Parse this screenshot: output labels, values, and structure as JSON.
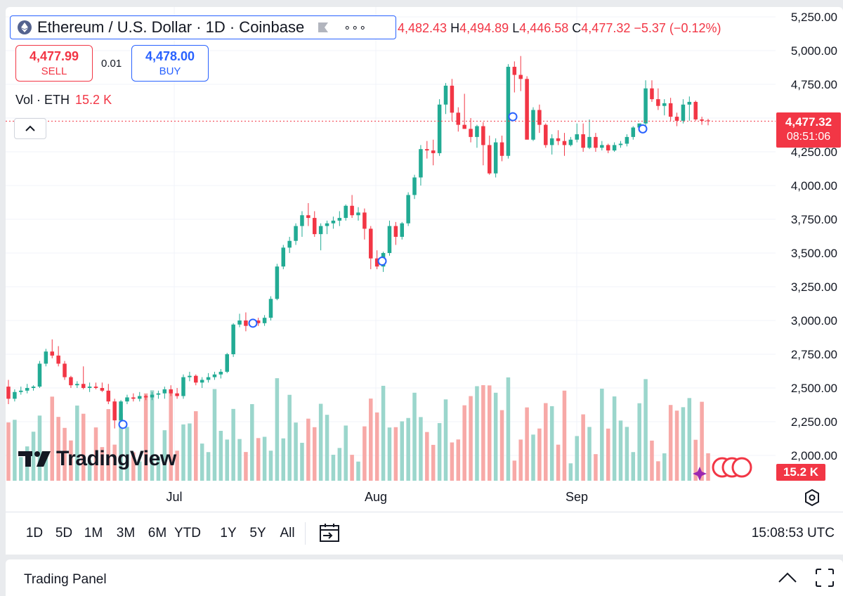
{
  "symbol": {
    "title": "Ethereum / U.S. Dollar · 1D · Coinbase",
    "icon": "ethereum-logo-icon",
    "more_icon": "more-options-icon"
  },
  "ohlc": {
    "o": "4,482.43",
    "h_label": "H",
    "h": "4,494.89",
    "l_label": "L",
    "l": "4,446.58",
    "c_label": "C",
    "c": "4,477.32",
    "change": "−5.37 (−0.12%)"
  },
  "trade": {
    "sell_price": "4,477.99",
    "sell_label": "SELL",
    "spread": "0.01",
    "buy_price": "4,478.00",
    "buy_label": "BUY"
  },
  "volume_legend": {
    "label": "Vol · ETH",
    "value": "15.2 K"
  },
  "last_price_tag": {
    "price": "4,477.32",
    "countdown": "08:51:06"
  },
  "volume_tag": "15.2 K",
  "brand": "TradingView",
  "colors": {
    "up": "#22ab94",
    "down": "#f23645",
    "up_vol": "#9bd6cc",
    "down_vol": "#f7a9a7",
    "accent": "#2962ff"
  },
  "range_buttons": [
    "1D",
    "5D",
    "1M",
    "3M",
    "6M",
    "YTD",
    "1Y",
    "5Y",
    "All"
  ],
  "clock": "15:08:53 UTC",
  "trading_panel": {
    "title": "Trading Panel"
  },
  "chart_data": {
    "type": "candlestick",
    "interval": "1D",
    "y_axis": {
      "labels": [
        "5,250.00",
        "5,000.00",
        "4,750.00",
        "4,500.00",
        "4,250.00",
        "4,000.00",
        "3,750.00",
        "3,500.00",
        "3,250.00",
        "3,000.00",
        "2,750.00",
        "2,500.00",
        "2,250.00",
        "2,000.00"
      ],
      "min": 1900,
      "max": 5300
    },
    "x_axis": {
      "labels": [
        "Jul",
        "Aug",
        "Sep"
      ]
    },
    "last_price": 4477.32,
    "candles": [
      [
        2510,
        2560,
        2380,
        2420
      ],
      [
        2420,
        2490,
        2400,
        2470
      ],
      [
        2470,
        2510,
        2450,
        2480
      ],
      [
        2480,
        2530,
        2460,
        2500
      ],
      [
        2500,
        2520,
        2480,
        2510
      ],
      [
        2510,
        2700,
        2500,
        2680
      ],
      [
        2680,
        2790,
        2660,
        2770
      ],
      [
        2770,
        2860,
        2720,
        2740
      ],
      [
        2740,
        2810,
        2660,
        2680
      ],
      [
        2680,
        2700,
        2560,
        2580
      ],
      [
        2580,
        2590,
        2500,
        2520
      ],
      [
        2520,
        2550,
        2500,
        2530
      ],
      [
        2530,
        2660,
        2490,
        2500
      ],
      [
        2500,
        2540,
        2470,
        2510
      ],
      [
        2510,
        2540,
        2490,
        2500
      ],
      [
        2500,
        2540,
        2470,
        2480
      ],
      [
        2480,
        2530,
        2380,
        2400
      ],
      [
        2400,
        2420,
        2200,
        2260
      ],
      [
        2260,
        2410,
        2220,
        2400
      ],
      [
        2400,
        2450,
        2380,
        2430
      ],
      [
        2430,
        2460,
        2400,
        2420
      ],
      [
        2420,
        2470,
        2400,
        2440
      ],
      [
        2440,
        2450,
        2410,
        2430
      ],
      [
        2430,
        2470,
        2410,
        2450
      ],
      [
        2450,
        2480,
        2420,
        2460
      ],
      [
        2460,
        2510,
        2420,
        2490
      ],
      [
        2490,
        2520,
        2440,
        2460
      ],
      [
        2460,
        2500,
        2420,
        2440
      ],
      [
        2440,
        2600,
        2420,
        2580
      ],
      [
        2580,
        2620,
        2550,
        2590
      ],
      [
        2590,
        2600,
        2520,
        2540
      ],
      [
        2540,
        2580,
        2500,
        2560
      ],
      [
        2560,
        2610,
        2540,
        2580
      ],
      [
        2580,
        2620,
        2560,
        2600
      ],
      [
        2600,
        2640,
        2570,
        2620
      ],
      [
        2620,
        2760,
        2610,
        2750
      ],
      [
        2750,
        2980,
        2730,
        2970
      ],
      [
        2970,
        3050,
        2950,
        3000
      ],
      [
        3000,
        3060,
        2920,
        2960
      ],
      [
        2960,
        3010,
        2950,
        3000
      ],
      [
        3000,
        3020,
        2960,
        2980
      ],
      [
        2980,
        3040,
        2960,
        3020
      ],
      [
        3020,
        3180,
        3000,
        3160
      ],
      [
        3160,
        3420,
        3150,
        3400
      ],
      [
        3400,
        3560,
        3380,
        3540
      ],
      [
        3540,
        3620,
        3500,
        3590
      ],
      [
        3590,
        3720,
        3560,
        3700
      ],
      [
        3700,
        3810,
        3620,
        3780
      ],
      [
        3780,
        3870,
        3700,
        3760
      ],
      [
        3760,
        3810,
        3620,
        3640
      ],
      [
        3640,
        3720,
        3520,
        3700
      ],
      [
        3700,
        3740,
        3640,
        3720
      ],
      [
        3720,
        3770,
        3680,
        3740
      ],
      [
        3740,
        3810,
        3700,
        3760
      ],
      [
        3760,
        3860,
        3740,
        3850
      ],
      [
        3850,
        3930,
        3760,
        3780
      ],
      [
        3780,
        3840,
        3740,
        3800
      ],
      [
        3800,
        3830,
        3600,
        3680
      ],
      [
        3680,
        3700,
        3380,
        3460
      ],
      [
        3460,
        3520,
        3380,
        3400
      ],
      [
        3400,
        3510,
        3360,
        3500
      ],
      [
        3500,
        3740,
        3480,
        3700
      ],
      [
        3700,
        3730,
        3560,
        3620
      ],
      [
        3620,
        3730,
        3600,
        3720
      ],
      [
        3720,
        3950,
        3700,
        3930
      ],
      [
        3930,
        4080,
        3900,
        4060
      ],
      [
        4060,
        4300,
        4000,
        4270
      ],
      [
        4270,
        4330,
        4200,
        4260
      ],
      [
        4260,
        4340,
        4150,
        4240
      ],
      [
        4240,
        4640,
        4220,
        4600
      ],
      [
        4600,
        4760,
        4530,
        4740
      ],
      [
        4740,
        4790,
        4480,
        4540
      ],
      [
        4540,
        4580,
        4400,
        4450
      ],
      [
        4450,
        4680,
        4420,
        4420
      ],
      [
        4420,
        4500,
        4320,
        4360
      ],
      [
        4360,
        4450,
        4280,
        4440
      ],
      [
        4440,
        4470,
        4150,
        4300
      ],
      [
        4300,
        4370,
        4080,
        4090
      ],
      [
        4090,
        4350,
        4060,
        4320
      ],
      [
        4320,
        4370,
        4180,
        4220
      ],
      [
        4220,
        4900,
        4200,
        4880
      ],
      [
        4880,
        4920,
        4690,
        4820
      ],
      [
        4820,
        4960,
        4700,
        4790
      ],
      [
        4790,
        4810,
        4360,
        4340
      ],
      [
        4340,
        4580,
        4330,
        4560
      ],
      [
        4560,
        4600,
        4390,
        4450
      ],
      [
        4450,
        4460,
        4280,
        4300
      ],
      [
        4300,
        4380,
        4230,
        4350
      ],
      [
        4350,
        4410,
        4300,
        4330
      ],
      [
        4330,
        4390,
        4220,
        4300
      ],
      [
        4300,
        4360,
        4290,
        4340
      ],
      [
        4340,
        4460,
        4320,
        4380
      ],
      [
        4380,
        4460,
        4250,
        4280
      ],
      [
        4280,
        4490,
        4270,
        4360
      ],
      [
        4360,
        4390,
        4250,
        4280
      ],
      [
        4280,
        4330,
        4260,
        4300
      ],
      [
        4300,
        4310,
        4240,
        4260
      ],
      [
        4260,
        4320,
        4250,
        4300
      ],
      [
        4300,
        4330,
        4280,
        4310
      ],
      [
        4310,
        4380,
        4290,
        4360
      ],
      [
        4360,
        4440,
        4340,
        4430
      ],
      [
        4430,
        4460,
        4400,
        4460
      ],
      [
        4460,
        4780,
        4440,
        4720
      ],
      [
        4720,
        4780,
        4620,
        4640
      ],
      [
        4640,
        4720,
        4560,
        4590
      ],
      [
        4590,
        4640,
        4520,
        4610
      ],
      [
        4610,
        4650,
        4480,
        4510
      ],
      [
        4510,
        4540,
        4440,
        4480
      ],
      [
        4480,
        4640,
        4460,
        4600
      ],
      [
        4600,
        4660,
        4480,
        4620
      ],
      [
        4620,
        4630,
        4480,
        4490
      ],
      [
        4490,
        4510,
        4450,
        4480
      ],
      [
        4482.43,
        4494.89,
        4446.58,
        4477.32
      ]
    ],
    "volume_note": "daily volume bars, relative"
  }
}
